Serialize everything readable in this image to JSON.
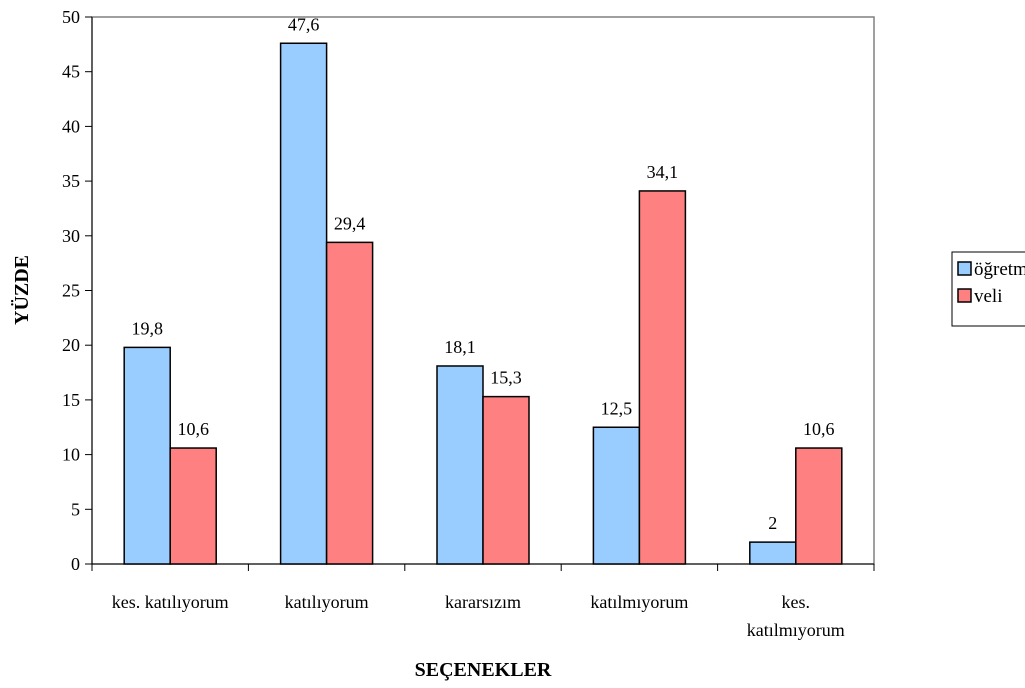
{
  "chart_data": {
    "type": "bar",
    "title": "",
    "xlabel": "SEÇENEKLER",
    "ylabel": "YÜZDE",
    "ylim": [
      0,
      50
    ],
    "yticks": [
      0,
      5,
      10,
      15,
      20,
      25,
      30,
      35,
      40,
      45,
      50
    ],
    "grid": false,
    "legend_position": "right",
    "categories": [
      [
        "kes. katılıyorum"
      ],
      [
        "katılıyorum"
      ],
      [
        "kararsızım"
      ],
      [
        "katılmıyorum"
      ],
      [
        "kes.",
        "katılmıyorum"
      ]
    ],
    "series": [
      {
        "name": "öğretmen",
        "color": "#99ccff",
        "values": [
          19.8,
          47.6,
          18.1,
          12.5,
          2
        ],
        "labels": [
          "19,8",
          "47,6",
          "18,1",
          "12,5",
          "2"
        ]
      },
      {
        "name": "veli",
        "color": "#ff8080",
        "values": [
          10.6,
          29.4,
          15.3,
          34.1,
          10.6
        ],
        "labels": [
          "10,6",
          "29,4",
          "15,3",
          "34,1",
          "10,6"
        ]
      }
    ]
  }
}
